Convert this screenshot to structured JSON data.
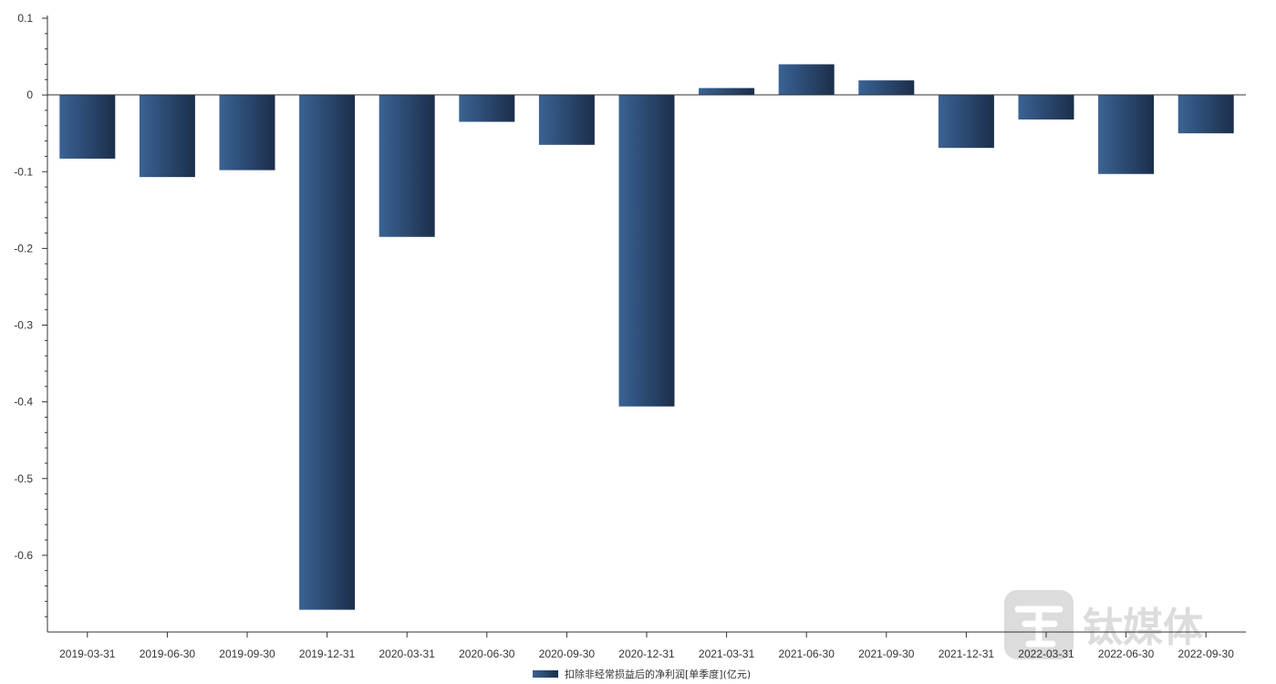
{
  "chart_data": {
    "type": "bar",
    "categories": [
      "2019-03-31",
      "2019-06-30",
      "2019-09-30",
      "2019-12-31",
      "2020-03-31",
      "2020-06-30",
      "2020-09-30",
      "2020-12-31",
      "2021-03-31",
      "2021-06-30",
      "2021-09-30",
      "2021-12-31",
      "2022-03-31",
      "2022-06-30",
      "2022-09-30"
    ],
    "series": [
      {
        "name": "扣除非经常损益后的净利润[单季度](亿元)",
        "values": [
          -0.083,
          -0.107,
          -0.098,
          -0.671,
          -0.185,
          -0.035,
          -0.065,
          -0.406,
          0.009,
          0.04,
          0.019,
          -0.069,
          -0.032,
          -0.103,
          -0.05
        ]
      }
    ],
    "yticks": [
      "0.1",
      "0",
      "-0.1",
      "-0.2",
      "-0.3",
      "-0.4",
      "-0.5",
      "-0.6"
    ],
    "ylim": [
      -0.7,
      0.1
    ],
    "grid": false,
    "legend": "bottom-center",
    "colors": {
      "bar_light": "#3a6394",
      "bar_dark": "#1c2e4a",
      "axis": "#333333"
    }
  },
  "watermark": {
    "text": "钛媒体",
    "icon": "tmtpost-logo-icon"
  }
}
